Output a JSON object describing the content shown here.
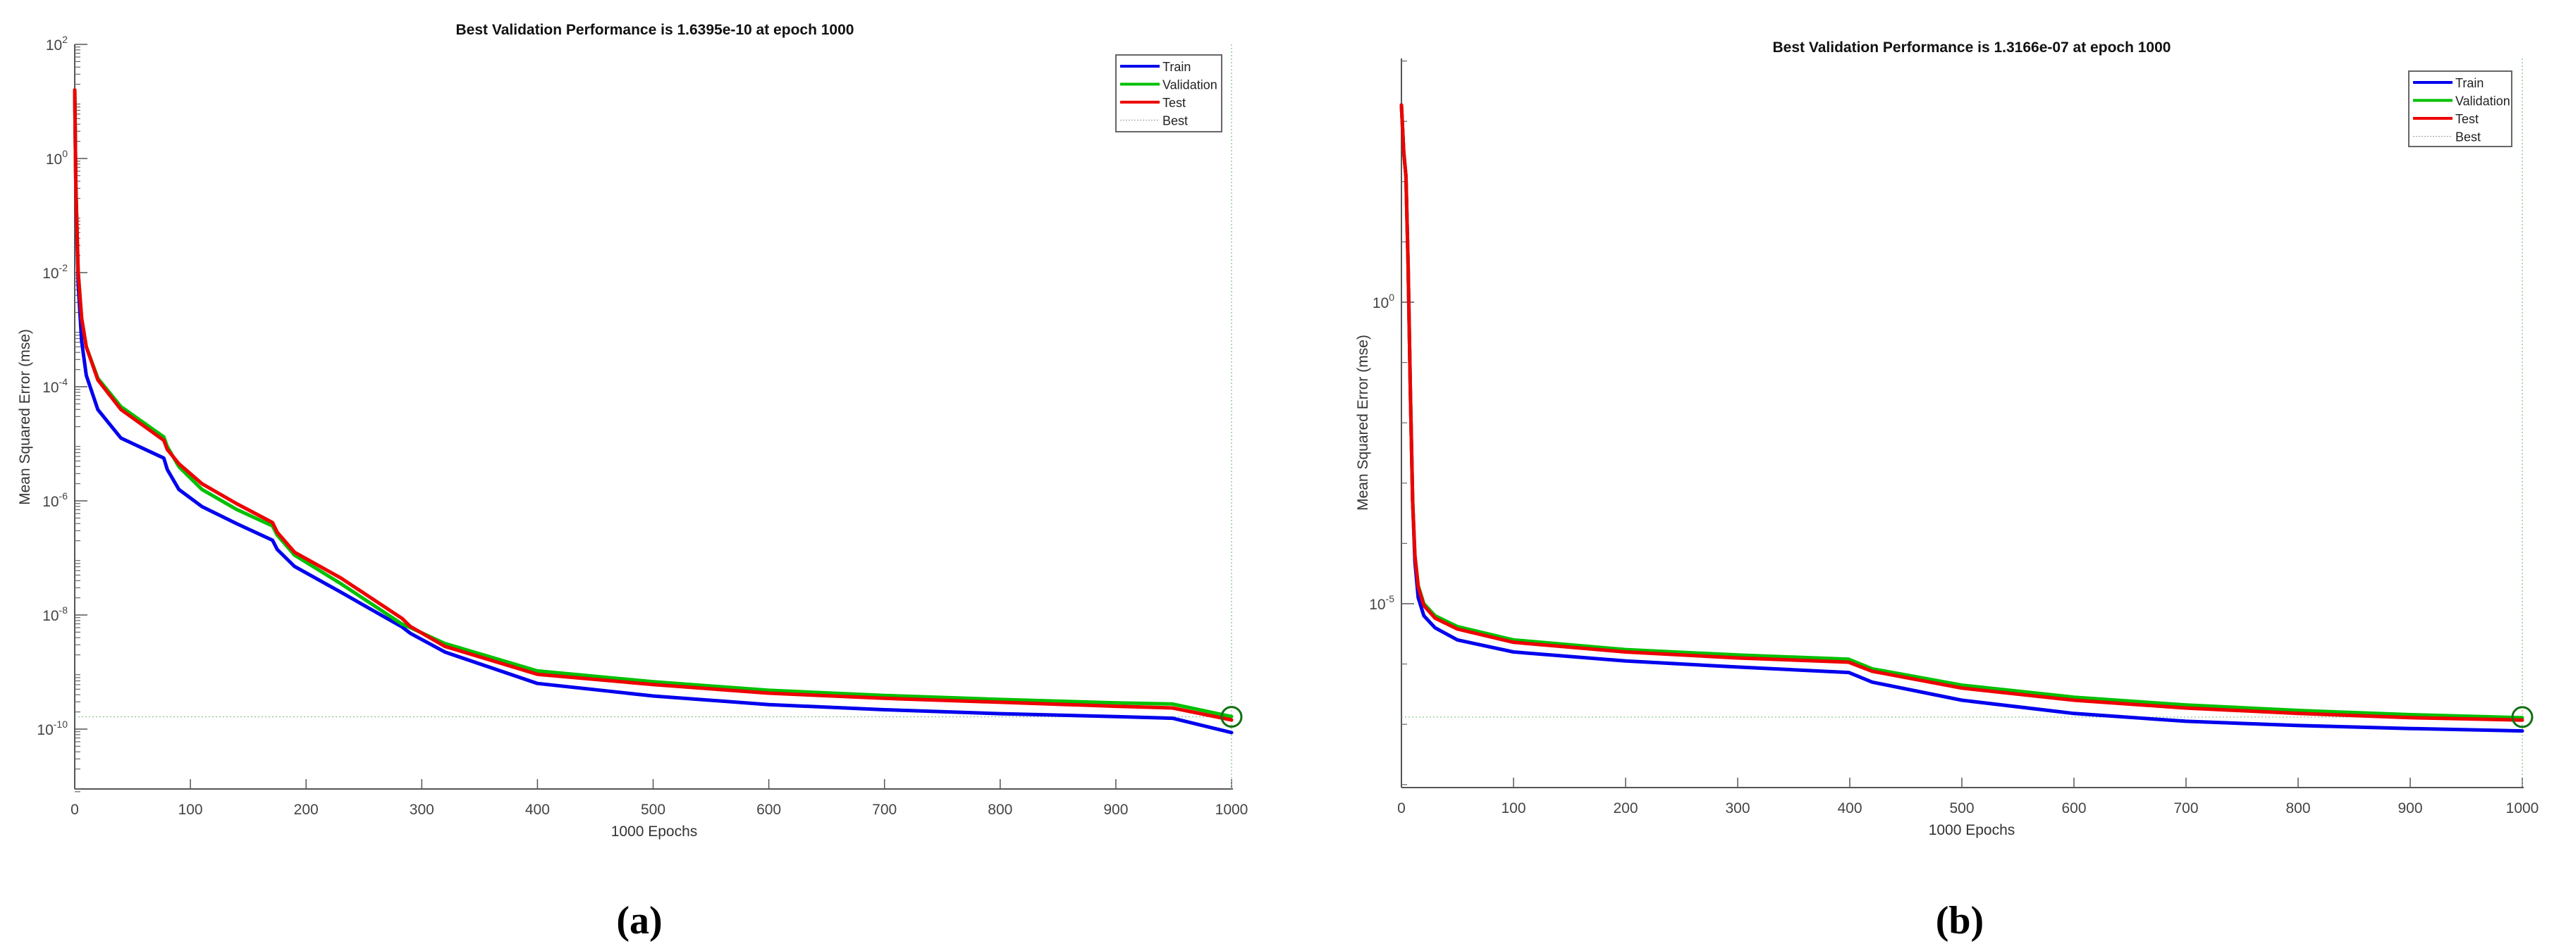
{
  "figure": {
    "panels": [
      "(a)",
      "(b)"
    ]
  },
  "chart_data": [
    {
      "type": "line",
      "panel_label": "(a)",
      "title": "Best Validation Performance is 1.6395e-10 at epoch 1000",
      "xlabel": "1000 Epochs",
      "ylabel": "Mean Squared Error  (mse)",
      "yscale": "log",
      "xlim": [
        0,
        1000
      ],
      "ylim_log10": [
        -11.1,
        2
      ],
      "xticks": [
        0,
        100,
        200,
        300,
        400,
        500,
        600,
        700,
        800,
        900,
        1000
      ],
      "yticks_log10": [
        2,
        0,
        -2,
        -4,
        -6,
        -8,
        -10
      ],
      "ytick_labels": [
        "10^2",
        "10^0",
        "10^-2",
        "10^-4",
        "10^-6",
        "10^-8",
        "10^-10"
      ],
      "minor_ticks": true,
      "grid": false,
      "legend": {
        "position": "top-right",
        "entries": [
          "Train",
          "Validation",
          "Test",
          "Best"
        ]
      },
      "best": {
        "epoch": 1000,
        "value": 1.6395e-10,
        "log10": -9.785
      },
      "series": [
        {
          "name": "Train",
          "color": "#0000ee",
          "x": [
            0,
            1,
            3,
            6,
            10,
            20,
            40,
            77,
            80,
            90,
            110,
            140,
            171,
            175,
            190,
            230,
            283,
            290,
            320,
            400,
            500,
            600,
            700,
            800,
            900,
            949,
            1000
          ],
          "log10": [
            1.2,
            -0.5,
            -2.2,
            -3.2,
            -3.8,
            -4.4,
            -4.9,
            -5.25,
            -5.45,
            -5.8,
            -6.1,
            -6.4,
            -6.69,
            -6.85,
            -7.15,
            -7.6,
            -8.21,
            -8.32,
            -8.65,
            -9.2,
            -9.42,
            -9.57,
            -9.66,
            -9.73,
            -9.78,
            -9.81,
            -10.06
          ]
        },
        {
          "name": "Validation",
          "color": "#00c000",
          "x": [
            0,
            1,
            3,
            6,
            10,
            20,
            40,
            77,
            80,
            90,
            110,
            140,
            171,
            175,
            190,
            230,
            283,
            290,
            320,
            400,
            500,
            600,
            700,
            800,
            900,
            949,
            1000
          ],
          "log10": [
            1.2,
            -0.5,
            -2.0,
            -2.8,
            -3.3,
            -3.85,
            -4.35,
            -4.88,
            -5.05,
            -5.4,
            -5.8,
            -6.15,
            -6.44,
            -6.6,
            -6.95,
            -7.45,
            -8.16,
            -8.22,
            -8.5,
            -8.98,
            -9.17,
            -9.32,
            -9.41,
            -9.48,
            -9.54,
            -9.56,
            -9.78
          ]
        },
        {
          "name": "Test",
          "color": "#ee0000",
          "x": [
            0,
            1,
            3,
            6,
            10,
            20,
            40,
            77,
            80,
            90,
            110,
            140,
            171,
            175,
            190,
            230,
            283,
            290,
            320,
            400,
            500,
            600,
            700,
            800,
            900,
            949,
            1000
          ],
          "log10": [
            1.2,
            -0.5,
            -2.0,
            -2.8,
            -3.3,
            -3.88,
            -4.4,
            -4.94,
            -5.1,
            -5.35,
            -5.7,
            -6.05,
            -6.38,
            -6.55,
            -6.9,
            -7.35,
            -8.06,
            -8.2,
            -8.55,
            -9.04,
            -9.22,
            -9.37,
            -9.46,
            -9.53,
            -9.6,
            -9.63,
            -9.84
          ]
        }
      ]
    },
    {
      "type": "line",
      "panel_label": "(b)",
      "title": "Best Validation Performance is 1.3166e-07 at epoch 1000",
      "xlabel": "1000 Epochs",
      "ylabel": "Mean Squared Error  (mse)",
      "yscale": "log",
      "xlim": [
        0,
        1000
      ],
      "ylim_log10": [
        -8.05,
        4.05
      ],
      "xticks": [
        0,
        100,
        200,
        300,
        400,
        500,
        600,
        700,
        800,
        900,
        1000
      ],
      "yticks_log10": [
        0,
        -5
      ],
      "ytick_labels": [
        "10^0",
        "10^-5"
      ],
      "minor_ticks_log10": [
        4,
        3,
        2,
        1,
        -1,
        -2,
        -3,
        -4,
        -6,
        -7,
        -8
      ],
      "grid": false,
      "legend": {
        "position": "top-right",
        "entries": [
          "Train",
          "Validation",
          "Test",
          "Best"
        ]
      },
      "best": {
        "epoch": 1000,
        "value": 1.3166e-07,
        "log10": -6.88
      },
      "series": [
        {
          "name": "Train",
          "color": "#0000ee",
          "x": [
            0,
            2,
            4,
            6,
            8,
            10,
            12,
            15,
            20,
            30,
            50,
            100,
            200,
            300,
            399,
            420,
            500,
            600,
            700,
            800,
            900,
            1000
          ],
          "log10": [
            3.27,
            2.5,
            2.09,
            0.6,
            -1.5,
            -3.3,
            -4.3,
            -4.9,
            -5.2,
            -5.4,
            -5.6,
            -5.8,
            -5.95,
            -6.05,
            -6.14,
            -6.3,
            -6.6,
            -6.82,
            -6.95,
            -7.02,
            -7.07,
            -7.11
          ]
        },
        {
          "name": "Validation",
          "color": "#00c000",
          "x": [
            0,
            2,
            4,
            6,
            8,
            10,
            12,
            15,
            20,
            30,
            50,
            100,
            200,
            300,
            399,
            420,
            500,
            600,
            700,
            800,
            900,
            1000
          ],
          "log10": [
            3.27,
            2.5,
            2.09,
            0.6,
            -1.5,
            -3.3,
            -4.2,
            -4.7,
            -5.0,
            -5.2,
            -5.38,
            -5.6,
            -5.76,
            -5.85,
            -5.92,
            -6.08,
            -6.35,
            -6.55,
            -6.68,
            -6.77,
            -6.84,
            -6.89
          ]
        },
        {
          "name": "Test",
          "color": "#ee0000",
          "x": [
            0,
            2,
            4,
            6,
            8,
            10,
            12,
            15,
            20,
            30,
            50,
            100,
            200,
            300,
            399,
            420,
            500,
            600,
            700,
            800,
            900,
            1000
          ],
          "log10": [
            3.27,
            2.5,
            2.09,
            0.6,
            -1.5,
            -3.3,
            -4.2,
            -4.72,
            -5.03,
            -5.24,
            -5.42,
            -5.64,
            -5.8,
            -5.9,
            -5.97,
            -6.12,
            -6.4,
            -6.6,
            -6.73,
            -6.82,
            -6.89,
            -6.93
          ]
        }
      ]
    }
  ]
}
